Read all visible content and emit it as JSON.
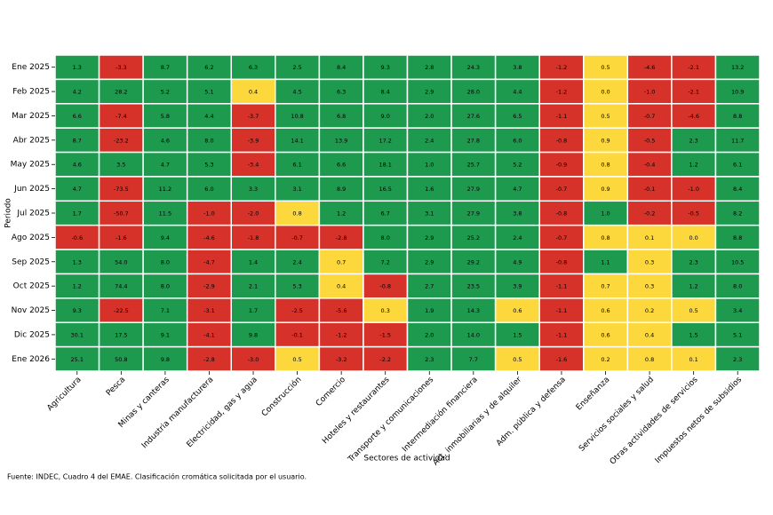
{
  "chart_data": {
    "type": "heatmap",
    "xlabel": "Sectores de actividad",
    "ylabel": "Periodo",
    "source": "Fuente: INDEC, Cuadro 4 del EMAE. Clasificación cromática solicitada por el usuario.",
    "x_categories": [
      "Agricultura",
      "Pesca",
      "Minas y canteras",
      "Industria manufacturera",
      "Electricidad, gas y agua",
      "Construcción",
      "Comercio",
      "Hoteles y restaurantes",
      "Transporte y comunicaciones",
      "Intermediación financiera",
      "Act. inmobiliarias y de alquiler",
      "Adm. pública y defensa",
      "Enseñanza",
      "Servicios sociales y salud",
      "Otras actividades de servicios",
      "Impuestos netos de subsidios"
    ],
    "y_categories": [
      "Ene 2025",
      "Feb 2025",
      "Mar 2025",
      "Abr 2025",
      "May 2025",
      "Jun 2025",
      "Jul 2025",
      "Ago 2025",
      "Sep 2025",
      "Oct 2025",
      "Nov 2025",
      "Dic 2025",
      "Ene 2026"
    ],
    "color_scale": [
      {
        "below": 0,
        "color": "#d7322a"
      },
      {
        "below": 1,
        "color": "#fdd83d"
      },
      {
        "color": "#1e9a4f"
      }
    ],
    "values": [
      [
        1.3,
        -3.3,
        8.7,
        6.2,
        6.3,
        2.5,
        8.4,
        9.3,
        2.8,
        24.3,
        3.8,
        -1.2,
        0.5,
        -4.6,
        -2.1,
        13.2
      ],
      [
        4.2,
        28.2,
        5.2,
        5.1,
        0.4,
        4.5,
        6.3,
        8.4,
        2.9,
        28.0,
        4.4,
        -1.2,
        0.0,
        -1.0,
        -2.1,
        10.9
      ],
      [
        6.6,
        -7.4,
        5.8,
        4.4,
        -3.7,
        10.8,
        6.8,
        9.0,
        2.0,
        27.6,
        6.5,
        -1.1,
        0.5,
        -0.7,
        -4.6,
        8.8
      ],
      [
        8.7,
        -23.2,
        4.6,
        8.0,
        -3.9,
        14.1,
        13.9,
        17.2,
        2.4,
        27.8,
        6.0,
        -0.8,
        0.9,
        -0.5,
        2.3,
        11.7
      ],
      [
        4.6,
        3.5,
        4.7,
        5.3,
        -3.4,
        6.1,
        6.6,
        18.1,
        1.0,
        25.7,
        5.2,
        -0.9,
        0.8,
        -0.4,
        1.2,
        6.1
      ],
      [
        4.7,
        -73.5,
        11.2,
        6.0,
        3.3,
        3.1,
        8.9,
        16.5,
        1.6,
        27.9,
        4.7,
        -0.7,
        0.9,
        -0.1,
        -1.0,
        8.4
      ],
      [
        1.7,
        -50.7,
        11.5,
        -1.0,
        -2.0,
        0.8,
        1.2,
        6.7,
        3.1,
        27.9,
        3.8,
        -0.8,
        1.0,
        -0.2,
        -0.5,
        8.2
      ],
      [
        -0.6,
        -1.6,
        9.4,
        -4.6,
        -1.8,
        -0.7,
        -2.8,
        8.0,
        2.9,
        25.2,
        2.4,
        -0.7,
        0.8,
        0.1,
        0.0,
        8.8
      ],
      [
        1.3,
        54.0,
        8.0,
        -4.7,
        1.4,
        2.4,
        0.7,
        7.2,
        2.9,
        29.2,
        4.9,
        -0.8,
        1.1,
        0.3,
        2.3,
        10.5
      ],
      [
        1.2,
        74.4,
        8.0,
        -2.9,
        2.1,
        5.3,
        0.4,
        -0.8,
        2.7,
        23.5,
        3.9,
        -1.1,
        0.7,
        0.3,
        1.2,
        8.0
      ],
      [
        9.3,
        -22.5,
        7.1,
        -3.1,
        1.7,
        -2.5,
        -5.6,
        0.3,
        1.9,
        14.3,
        0.6,
        -1.1,
        0.6,
        0.2,
        0.5,
        3.4
      ],
      [
        30.1,
        17.5,
        9.1,
        -4.1,
        9.8,
        -0.1,
        -1.2,
        -1.5,
        2.0,
        14.0,
        1.5,
        -1.1,
        0.6,
        0.4,
        1.5,
        5.1
      ],
      [
        25.1,
        50.8,
        9.8,
        -2.8,
        -3.0,
        0.5,
        -3.2,
        -2.2,
        2.3,
        7.7,
        0.5,
        -1.6,
        0.2,
        0.8,
        0.1,
        2.3
      ]
    ],
    "value_labels": [
      [
        "1.3",
        "-3.3",
        "8.7",
        "6.2",
        "6.3",
        "2.5",
        "8.4",
        "9.3",
        "2.8",
        "24.3",
        "3.8",
        "-1.2",
        "0.5",
        "-4.6",
        "-2.1",
        "13.2"
      ],
      [
        "4.2",
        "28.2",
        "5.2",
        "5.1",
        "0.4",
        "4.5",
        "6.3",
        "8.4",
        "2.9",
        "28.0",
        "4.4",
        "-1.2",
        "0.0",
        "-1.0",
        "-2.1",
        "10.9"
      ],
      [
        "6.6",
        "-7.4",
        "5.8",
        "4.4",
        "-3.7",
        "10.8",
        "6.8",
        "9.0",
        "2.0",
        "27.6",
        "6.5",
        "-1.1",
        "0.5",
        "-0.7",
        "-4.6",
        "8.8"
      ],
      [
        "8.7",
        "-23.2",
        "4.6",
        "8.0",
        "-3.9",
        "14.1",
        "13.9",
        "17.2",
        "2.4",
        "27.8",
        "6.0",
        "-0.8",
        "0.9",
        "-0.5",
        "2.3",
        "11.7"
      ],
      [
        "4.6",
        "3.5",
        "4.7",
        "5.3",
        "-3.4",
        "6.1",
        "6.6",
        "18.1",
        "1.0",
        "25.7",
        "5.2",
        "-0.9",
        "0.8",
        "-0.4",
        "1.2",
        "6.1"
      ],
      [
        "4.7",
        "-73.5",
        "11.2",
        "6.0",
        "3.3",
        "3.1",
        "8.9",
        "16.5",
        "1.6",
        "27.9",
        "4.7",
        "-0.7",
        "0.9",
        "-0.1",
        "-1.0",
        "8.4"
      ],
      [
        "1.7",
        "-50.7",
        "11.5",
        "-1.0",
        "-2.0",
        "0.8",
        "1.2",
        "6.7",
        "3.1",
        "27.9",
        "3.8",
        "-0.8",
        "1.0",
        "-0.2",
        "-0.5",
        "8.2"
      ],
      [
        "-0.6",
        "-1.6",
        "9.4",
        "-4.6",
        "-1.8",
        "-0.7",
        "-2.8",
        "8.0",
        "2.9",
        "25.2",
        "2.4",
        "-0.7",
        "0.8",
        "0.1",
        "0.0",
        "8.8"
      ],
      [
        "1.3",
        "54.0",
        "8.0",
        "-4.7",
        "1.4",
        "2.4",
        "0.7",
        "7.2",
        "2.9",
        "29.2",
        "4.9",
        "-0.8",
        "1.1",
        "0.3",
        "2.3",
        "10.5"
      ],
      [
        "1.2",
        "74.4",
        "8.0",
        "-2.9",
        "2.1",
        "5.3",
        "0.4",
        "-0.8",
        "2.7",
        "23.5",
        "3.9",
        "-1.1",
        "0.7",
        "0.3",
        "1.2",
        "8.0"
      ],
      [
        "9.3",
        "-22.5",
        "7.1",
        "-3.1",
        "1.7",
        "-2.5",
        "-5.6",
        "0.3",
        "1.9",
        "14.3",
        "0.6",
        "-1.1",
        "0.6",
        "0.2",
        "0.5",
        "3.4"
      ],
      [
        "30.1",
        "17.5",
        "9.1",
        "-4.1",
        "9.8",
        "-0.1",
        "-1.2",
        "-1.5",
        "2.0",
        "14.0",
        "1.5",
        "-1.1",
        "0.6",
        "0.4",
        "1.5",
        "5.1"
      ],
      [
        "25.1",
        "50.8",
        "9.8",
        "-2.8",
        "-3.0",
        "0.5",
        "-3.2",
        "-2.2",
        "2.3",
        "7.7",
        "0.5",
        "-1.6",
        "0.2",
        "0.8",
        "0.1",
        "2.3"
      ]
    ]
  }
}
